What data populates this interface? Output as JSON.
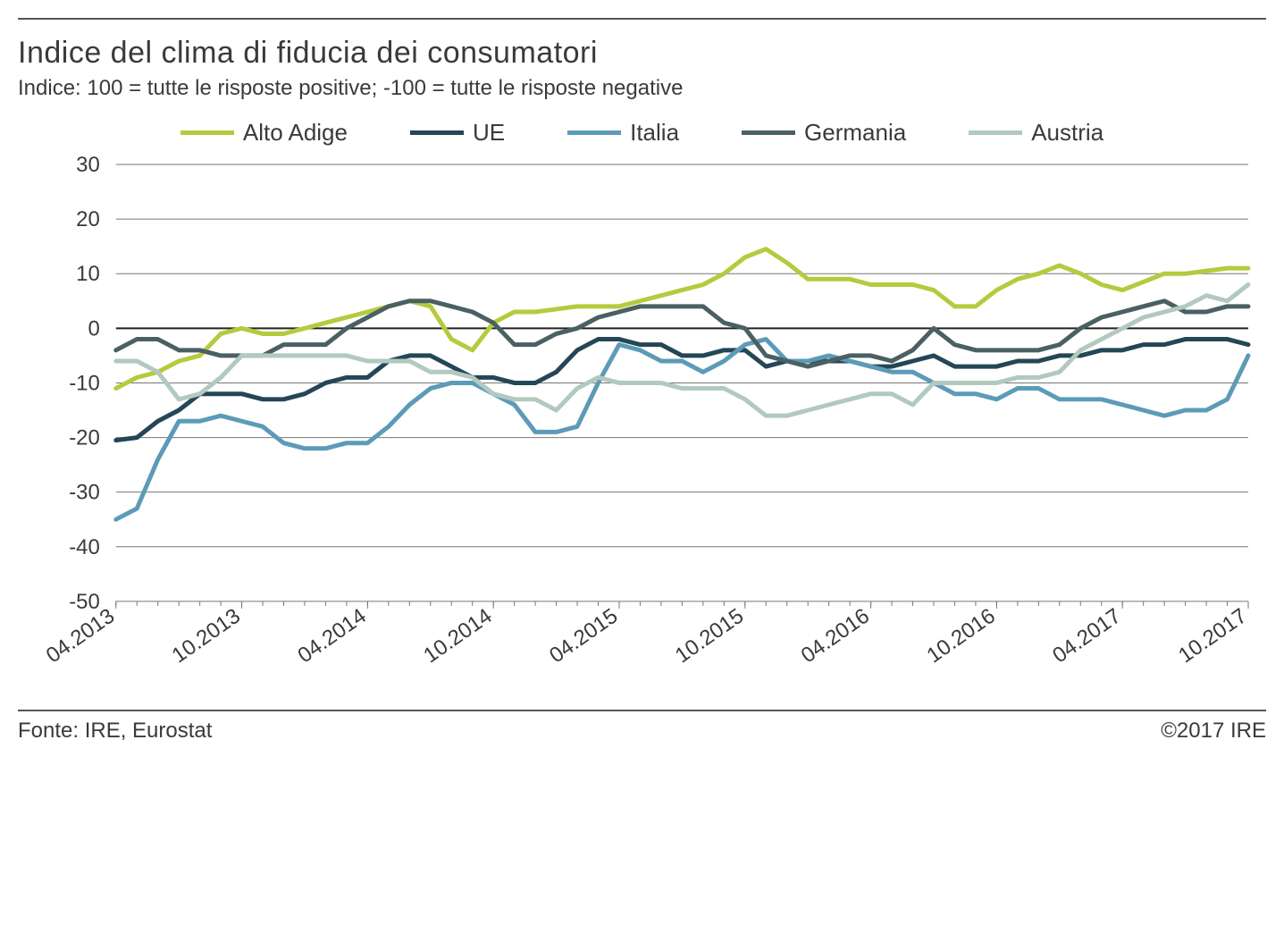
{
  "title": "Indice del clima di fiducia dei consumatori",
  "subtitle": "Indice: 100 = tutte le risposte positive; -100 =  tutte le risposte negative",
  "footer_source": "Fonte:  IRE, Eurostat",
  "footer_copyright": "©2017 IRE",
  "chart": {
    "type": "line",
    "background_color": "#ffffff",
    "grid_color": "#777777",
    "zero_line_color": "#222222",
    "axis_font_size": 24,
    "title_font_size": 34,
    "legend_font_size": 26,
    "line_width": 5,
    "ylim": [
      -50,
      30
    ],
    "ytick_step": 10,
    "yticks": [
      30,
      20,
      10,
      0,
      -10,
      -20,
      -30,
      -40,
      -50
    ],
    "x_labels": [
      "04.2013",
      "10.2013",
      "04.2014",
      "10.2014",
      "04.2015",
      "10.2015",
      "04.2016",
      "10.2016",
      "04.2017",
      "10.2017"
    ],
    "x_label_indices": [
      0,
      6,
      12,
      18,
      24,
      30,
      36,
      42,
      48,
      54
    ],
    "n_points": 55,
    "series": [
      {
        "name": "Alto Adige",
        "color": "#b6ca3e",
        "values": [
          -11,
          -9,
          -8,
          -6,
          -5,
          -1,
          0,
          -1,
          -1,
          0,
          1,
          2,
          3,
          4,
          5,
          4,
          -2,
          -4,
          1,
          3,
          3,
          3.5,
          4,
          4,
          4,
          5,
          6,
          7,
          8,
          10,
          13,
          14.5,
          12,
          9,
          9,
          9,
          8,
          8,
          8,
          7,
          4,
          4,
          7,
          9,
          10,
          11.5,
          10,
          8,
          7,
          8.5,
          10,
          10,
          10.5,
          11,
          11
        ]
      },
      {
        "name": "UE",
        "color": "#244657",
        "values": [
          -20.5,
          -20,
          -17,
          -15,
          -12,
          -12,
          -12,
          -13,
          -13,
          -12,
          -10,
          -9,
          -9,
          -6,
          -5,
          -5,
          -7,
          -9,
          -9,
          -10,
          -10,
          -8,
          -4,
          -2,
          -2,
          -3,
          -3,
          -5,
          -5,
          -4,
          -4,
          -7,
          -6,
          -6,
          -6,
          -6,
          -7,
          -7,
          -6,
          -5,
          -7,
          -7,
          -7,
          -6,
          -6,
          -5,
          -5,
          -4,
          -4,
          -3,
          -3,
          -2,
          -2,
          -2,
          -3
        ]
      },
      {
        "name": "Italia",
        "color": "#5c9bb8",
        "values": [
          -35,
          -33,
          -24,
          -17,
          -17,
          -16,
          -17,
          -18,
          -21,
          -22,
          -22,
          -21,
          -21,
          -18,
          -14,
          -11,
          -10,
          -10,
          -12,
          -14,
          -19,
          -19,
          -18,
          -10,
          -3,
          -4,
          -6,
          -6,
          -8,
          -6,
          -3,
          -2,
          -6,
          -6,
          -5,
          -6,
          -7,
          -8,
          -8,
          -10,
          -12,
          -12,
          -13,
          -11,
          -11,
          -13,
          -13,
          -13,
          -14,
          -15,
          -16,
          -15,
          -15,
          -13,
          -5
        ]
      },
      {
        "name": "Germania",
        "color": "#4a6062",
        "values": [
          -4,
          -2,
          -2,
          -4,
          -4,
          -5,
          -5,
          -5,
          -3,
          -3,
          -3,
          0,
          2,
          4,
          5,
          5,
          4,
          3,
          1,
          -3,
          -3,
          -1,
          0,
          2,
          3,
          4,
          4,
          4,
          4,
          1,
          0,
          -5,
          -6,
          -7,
          -6,
          -5,
          -5,
          -6,
          -4,
          0,
          -3,
          -4,
          -4,
          -4,
          -4,
          -3,
          0,
          2,
          3,
          4,
          5,
          3,
          3,
          4,
          4
        ]
      },
      {
        "name": "Austria",
        "color": "#b2c9bf",
        "values": [
          -6,
          -6,
          -8,
          -13,
          -12,
          -9,
          -5,
          -5,
          -5,
          -5,
          -5,
          -5,
          -6,
          -6,
          -6,
          -8,
          -8,
          -9,
          -12,
          -13,
          -13,
          -15,
          -11,
          -9,
          -10,
          -10,
          -10,
          -11,
          -11,
          -11,
          -13,
          -16,
          -16,
          -15,
          -14,
          -13,
          -12,
          -12,
          -14,
          -10,
          -10,
          -10,
          -10,
          -9,
          -9,
          -8,
          -4,
          -2,
          0,
          2,
          3,
          4,
          6,
          5,
          8
        ]
      }
    ]
  }
}
